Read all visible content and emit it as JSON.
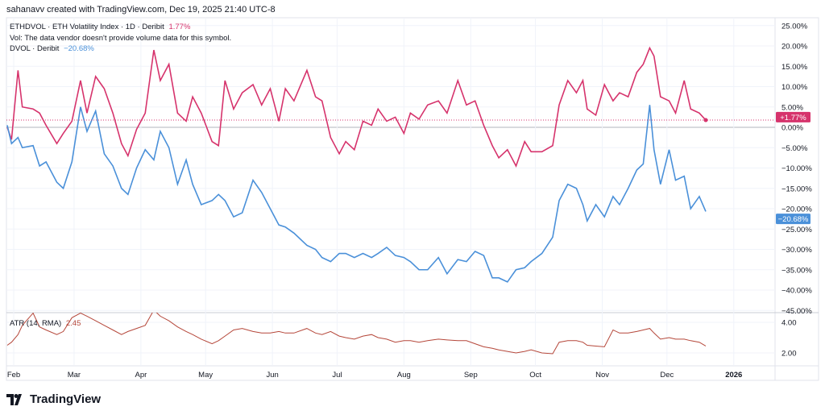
{
  "header": {
    "credit": "sahanavv created with TradingView.com, Dec 19, 2025 21:40 UTC-8"
  },
  "legend": {
    "main_symbol": "ETHDVOL · ETH Volatility Index · 1D · Deribit",
    "main_value": "1.77%",
    "volume_note": "Vol: The data vendor doesn't provide volume data for this symbol.",
    "compare_symbol": "DVOL · Deribit",
    "compare_value": "−20.68%",
    "atr_label": "ATR (14, RMA)",
    "atr_value": "2.45"
  },
  "brand": {
    "name": "TradingView",
    "logo_icon": "tradingview-logo-icon"
  },
  "colors": {
    "ethdvol": "#d6336c",
    "dvol": "#4a90d9",
    "atr": "#b5473a",
    "grid": "#f0f3fa"
  },
  "chart_data": {
    "type": "line",
    "y_axis": {
      "ticks": [
        "25.00%",
        "20.00%",
        "15.00%",
        "10.00%",
        "5.00%",
        "0.00%",
        "−5.00%",
        "−10.00%",
        "−15.00%",
        "−20.00%",
        "−25.00%",
        "−30.00%",
        "−35.00%",
        "−40.00%",
        "−45.00%"
      ],
      "tick_values": [
        25,
        20,
        15,
        10,
        5,
        0,
        -5,
        -10,
        -15,
        -20,
        -25,
        -30,
        -35,
        -40,
        -45
      ],
      "unit": "%"
    },
    "x_axis": {
      "ticks": [
        "Feb",
        "Mar",
        "Apr",
        "May",
        "Jun",
        "Jul",
        "Aug",
        "Sep",
        "Oct",
        "Nov",
        "Dec",
        "2026"
      ],
      "tick_dates": [
        "2025-02-01",
        "2025-03-01",
        "2025-04-01",
        "2025-05-01",
        "2025-06-01",
        "2025-07-01",
        "2025-08-01",
        "2025-09-01",
        "2025-10-01",
        "2025-11-01",
        "2025-12-01",
        "2026-01-01"
      ]
    },
    "last_labels": {
      "ethdvol": "+1.77%",
      "dvol": "−20.68%"
    },
    "dates": [
      "2025-01-29",
      "2025-01-31",
      "2025-02-03",
      "2025-02-05",
      "2025-02-10",
      "2025-02-13",
      "2025-02-16",
      "2025-02-21",
      "2025-02-24",
      "2025-02-28",
      "2025-03-04",
      "2025-03-07",
      "2025-03-11",
      "2025-03-15",
      "2025-03-19",
      "2025-03-23",
      "2025-03-26",
      "2025-03-30",
      "2025-04-03",
      "2025-04-07",
      "2025-04-10",
      "2025-04-14",
      "2025-04-18",
      "2025-04-22",
      "2025-04-25",
      "2025-04-29",
      "2025-05-04",
      "2025-05-07",
      "2025-05-10",
      "2025-05-14",
      "2025-05-18",
      "2025-05-23",
      "2025-05-27",
      "2025-05-31",
      "2025-06-04",
      "2025-06-07",
      "2025-06-11",
      "2025-06-17",
      "2025-06-21",
      "2025-06-24",
      "2025-06-28",
      "2025-07-02",
      "2025-07-05",
      "2025-07-09",
      "2025-07-13",
      "2025-07-17",
      "2025-07-20",
      "2025-07-24",
      "2025-07-28",
      "2025-08-01",
      "2025-08-04",
      "2025-08-08",
      "2025-08-12",
      "2025-08-17",
      "2025-08-21",
      "2025-08-26",
      "2025-08-30",
      "2025-09-03",
      "2025-09-07",
      "2025-09-11",
      "2025-09-14",
      "2025-09-18",
      "2025-09-22",
      "2025-09-26",
      "2025-09-29",
      "2025-10-04",
      "2025-10-09",
      "2025-10-12",
      "2025-10-16",
      "2025-10-20",
      "2025-10-23",
      "2025-10-25",
      "2025-10-29",
      "2025-11-02",
      "2025-11-06",
      "2025-11-09",
      "2025-11-13",
      "2025-11-17",
      "2025-11-20",
      "2025-11-23",
      "2025-11-25",
      "2025-11-28",
      "2025-12-02",
      "2025-12-05",
      "2025-12-09",
      "2025-12-12",
      "2025-12-16",
      "2025-12-19"
    ],
    "series": [
      {
        "name": "ETHDVOL",
        "values": [
          0,
          -3,
          14,
          5,
          4.5,
          3.5,
          0.5,
          -4,
          -1.5,
          1.5,
          11.5,
          3.5,
          12.5,
          9.5,
          3.5,
          -4,
          -7,
          -0.5,
          3.5,
          19,
          11.5,
          15.5,
          3.5,
          1.5,
          7.5,
          3.5,
          -3.5,
          -4.5,
          11.5,
          4.5,
          8.5,
          10.5,
          5.5,
          9.5,
          1.5,
          9.5,
          6.5,
          14,
          7.5,
          6.5,
          -2.5,
          -6.5,
          -3.5,
          -5.5,
          1.5,
          0.5,
          4.5,
          1.5,
          2.5,
          -1.5,
          3.5,
          2,
          5.5,
          6.5,
          3.5,
          11.5,
          5.5,
          6.5,
          0.5,
          -4.5,
          -7.5,
          -5.5,
          -9.5,
          -3.5,
          -6,
          -6,
          -4.5,
          5.5,
          11.5,
          8.5,
          11.5,
          4.5,
          3,
          10.5,
          6.5,
          8.5,
          7.5,
          13.5,
          15.5,
          19.5,
          17.5,
          7.5,
          6.5,
          3.5,
          11.5,
          4.5,
          3.5,
          1.77
        ]
      },
      {
        "name": "DVOL",
        "values": [
          0.5,
          -4,
          -2.5,
          -5,
          -4.5,
          -9.5,
          -8.5,
          -13.5,
          -15,
          -8.5,
          5,
          -1,
          4,
          -6.5,
          -9.5,
          -15,
          -16.5,
          -10,
          -5.5,
          -8,
          -1,
          -5,
          -14,
          -8,
          -14,
          -19,
          -18,
          -16.5,
          -18,
          -22,
          -21,
          -13,
          -16,
          -20,
          -24,
          -24.5,
          -26,
          -29,
          -30,
          -32,
          -33,
          -31,
          -31,
          -32,
          -31,
          -32,
          -31,
          -29.5,
          -31.5,
          -32,
          -33,
          -35,
          -35,
          -32,
          -36,
          -32.5,
          -33,
          -30.5,
          -31.5,
          -37,
          -37,
          -38,
          -35,
          -34.5,
          -33,
          -31,
          -27,
          -18,
          -14,
          -15,
          -19,
          -23,
          -19,
          -22,
          -17,
          -19,
          -15,
          -10.5,
          -9,
          5.5,
          -5.5,
          -14,
          -5.5,
          -13,
          -12,
          -20,
          -17,
          -20.68
        ]
      }
    ],
    "atr": {
      "ticks": [
        "4.00",
        "2.00"
      ],
      "tick_values": [
        4,
        2
      ],
      "values": [
        2.5,
        2.7,
        3.2,
        3.8,
        4.6,
        3.7,
        3.5,
        3.2,
        3.4,
        4.3,
        4.6,
        4.4,
        4.1,
        3.8,
        3.5,
        3.2,
        3.4,
        3.6,
        3.8,
        4.8,
        4.4,
        4.1,
        3.7,
        3.4,
        3.2,
        2.9,
        2.6,
        2.8,
        3.1,
        3.5,
        3.6,
        3.4,
        3.3,
        3.3,
        3.4,
        3.3,
        3.3,
        3.6,
        3.3,
        3.2,
        3.4,
        3.1,
        3.0,
        2.9,
        3.1,
        3.2,
        3.0,
        2.9,
        2.7,
        2.8,
        2.8,
        2.7,
        2.8,
        2.9,
        2.85,
        2.8,
        2.8,
        2.6,
        2.4,
        2.3,
        2.2,
        2.1,
        2.0,
        2.1,
        2.2,
        2.0,
        1.95,
        2.7,
        2.8,
        2.8,
        2.7,
        2.5,
        2.45,
        2.4,
        3.5,
        3.3,
        3.3,
        3.4,
        3.5,
        3.6,
        3.3,
        2.9,
        3.0,
        2.9,
        2.9,
        2.8,
        2.7,
        2.45
      ]
    },
    "grid": true
  }
}
